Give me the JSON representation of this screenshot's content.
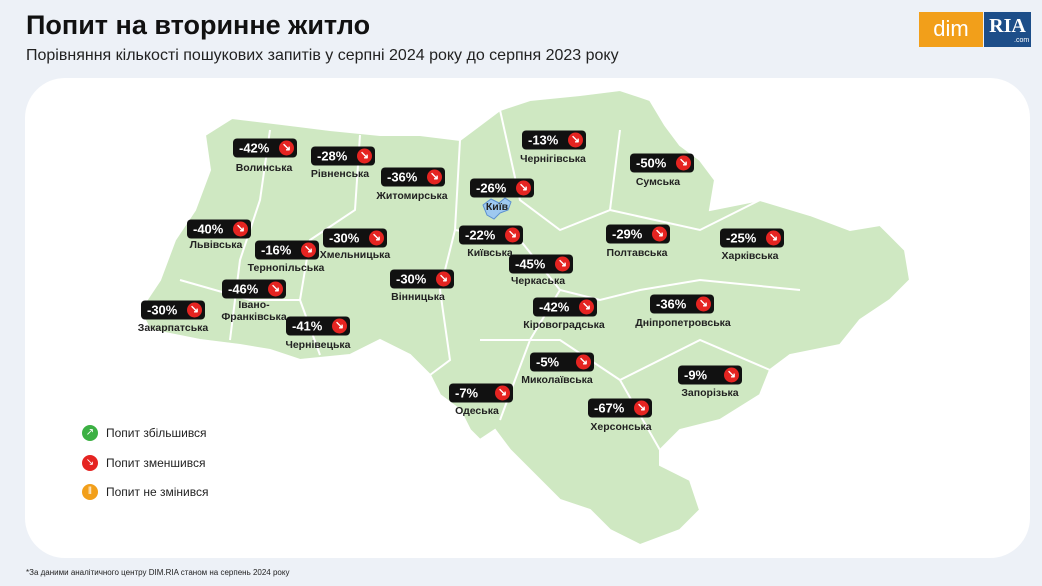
{
  "header": {
    "title": "Попит на вторинне житло",
    "subtitle": "Порівняння кількості пошукових запитів у серпні 2024 року до серпня 2023 року"
  },
  "logo": {
    "left": "dim",
    "right": "RIA",
    "domain": ".com"
  },
  "regions": [
    {
      "name": "Волинська",
      "value": -42,
      "label": "-42%"
    },
    {
      "name": "Рівненська",
      "value": -28,
      "label": "-28%"
    },
    {
      "name": "Житомирська",
      "value": -36,
      "label": "-36%"
    },
    {
      "name": "Київ",
      "value": -26,
      "label": "-26%"
    },
    {
      "name": "Чернігівська",
      "value": -13,
      "label": "-13%"
    },
    {
      "name": "Сумська",
      "value": -50,
      "label": "-50%"
    },
    {
      "name": "Львівська",
      "value": -40,
      "label": "-40%"
    },
    {
      "name": "Тернопільська",
      "value": -16,
      "label": "-16%"
    },
    {
      "name": "Хмельницька",
      "value": -30,
      "label": "-30%"
    },
    {
      "name": "Київська",
      "value": -22,
      "label": "-22%"
    },
    {
      "name": "Полтавська",
      "value": -29,
      "label": "-29%"
    },
    {
      "name": "Харківська",
      "value": -25,
      "label": "-25%"
    },
    {
      "name": "Черкаська",
      "value": -45,
      "label": "-45%"
    },
    {
      "name": "Вінницька",
      "value": -30,
      "label": "-30%"
    },
    {
      "name": "Івано-Франківська",
      "value": -46,
      "label": "-46%"
    },
    {
      "name": "Кіровоградська",
      "value": -42,
      "label": "-42%"
    },
    {
      "name": "Дніпропетровська",
      "value": -36,
      "label": "-36%"
    },
    {
      "name": "Закарпатська",
      "value": -30,
      "label": "-30%"
    },
    {
      "name": "Чернівецька",
      "value": -41,
      "label": "-41%"
    },
    {
      "name": "Миколаївська",
      "value": -5,
      "label": "-5%"
    },
    {
      "name": "Запорізька",
      "value": -9,
      "label": "-9%"
    },
    {
      "name": "Одеська",
      "value": -7,
      "label": "-7%"
    },
    {
      "name": "Херсонська",
      "value": -67,
      "label": "-67%"
    }
  ],
  "legend": [
    {
      "label": "Попит збільшився",
      "color": "#3cb043"
    },
    {
      "label": "Попит зменшився",
      "color": "#e52421"
    },
    {
      "label": "Попит не змінився",
      "color": "#f29f1a"
    }
  ],
  "footnote": "*За даними аналітичного центру DIM.RIA станом на серпень 2024 року"
}
